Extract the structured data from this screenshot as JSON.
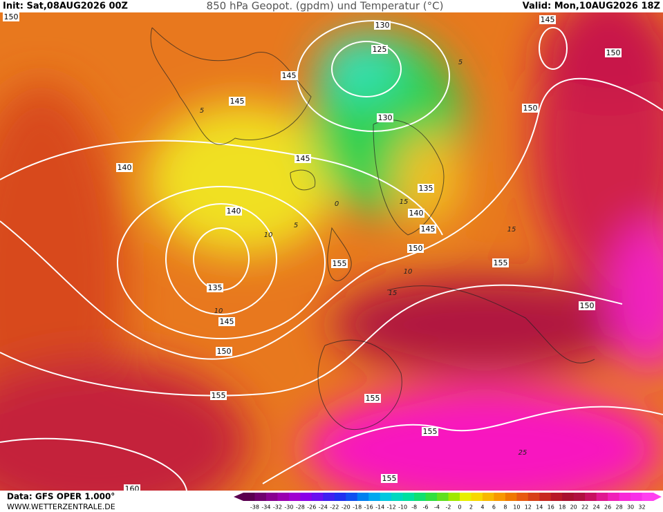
{
  "header": {
    "init": "Init: Sat,08AUG2026 00Z",
    "title": "850 hPa Geopot. (gpdm) und Temperatur (°C)",
    "valid": "Valid: Mon,10AUG2026 18Z"
  },
  "footer": {
    "data": "Data: GFS OPER 1.000°",
    "url": "WWW.WETTERZENTRALE.DE"
  },
  "scale": {
    "labels": [
      "-38",
      "-34",
      "-32",
      "-30",
      "-28",
      "-26",
      "-24",
      "-22",
      "-20",
      "-18",
      "-16",
      "-14",
      "-12",
      "-10",
      "-8",
      "-6",
      "-4",
      "-2",
      "0",
      "2",
      "4",
      "6",
      "8",
      "10",
      "12",
      "14",
      "16",
      "18",
      "20",
      "22",
      "24",
      "26",
      "28",
      "30",
      "32"
    ]
  },
  "geopotential_labels": [
    "150",
    "130",
    "125",
    "145",
    "150",
    "145",
    "145",
    "130",
    "150",
    "140",
    "145",
    "140",
    "135",
    "140",
    "145",
    "150",
    "155",
    "155",
    "135",
    "145",
    "150",
    "150",
    "155",
    "155",
    "155",
    "155",
    "160"
  ],
  "isotherm_labels": [
    "5",
    "0",
    "5",
    "5",
    "10",
    "10",
    "15",
    "15",
    "10",
    "25",
    "15"
  ]
}
